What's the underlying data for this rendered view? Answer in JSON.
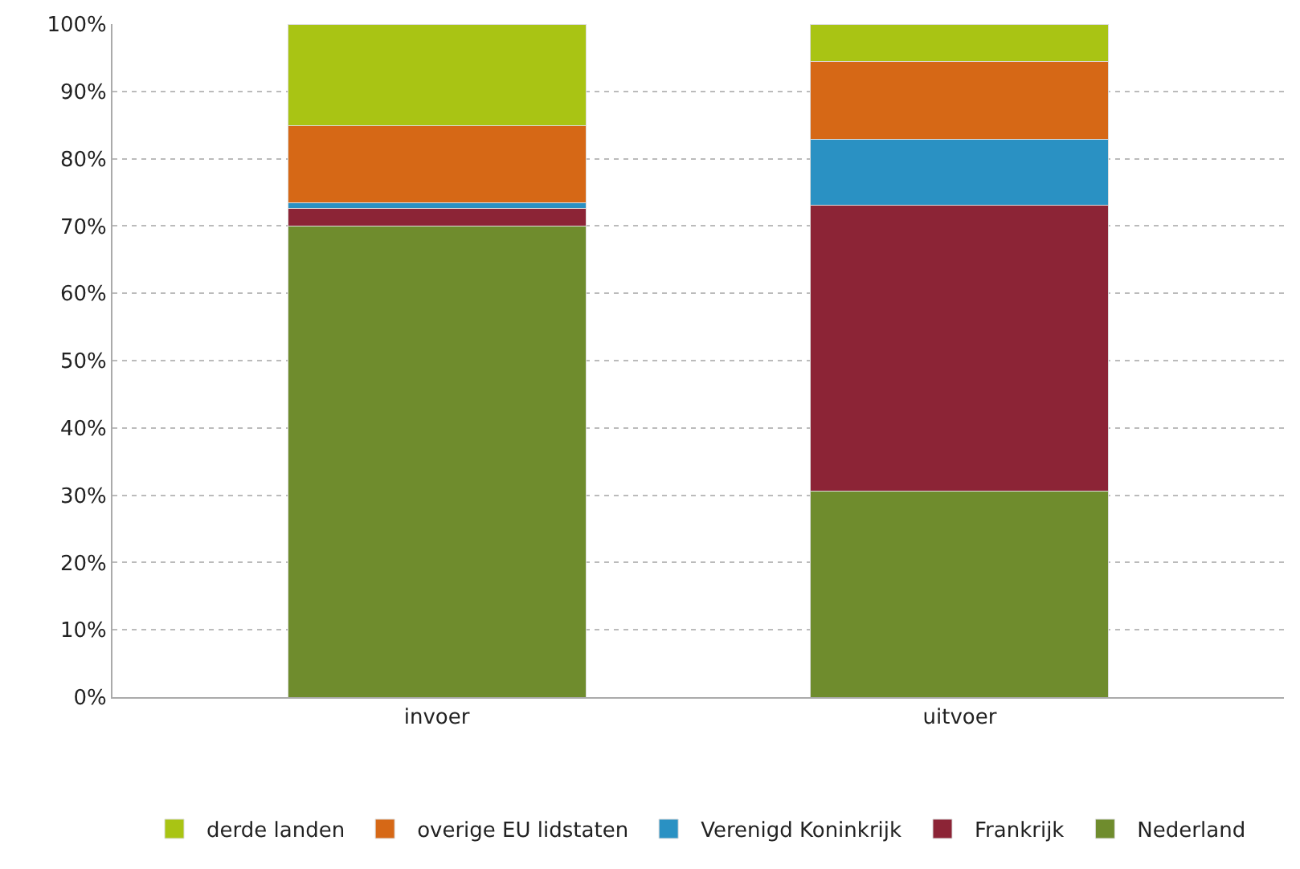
{
  "chart_data": {
    "type": "bar",
    "stacked": true,
    "categories": [
      "invoer",
      "uitvoer"
    ],
    "series": [
      {
        "name": "Nederland",
        "color": "#6f8c2d",
        "values": [
          70.0,
          30.6
        ]
      },
      {
        "name": "Frankrijk",
        "color": "#8c2436",
        "values": [
          2.6,
          42.5
        ]
      },
      {
        "name": "Verenigd Koninkrijk",
        "color": "#2a91c3",
        "values": [
          0.9,
          9.8
        ]
      },
      {
        "name": "overige EU lidstaten",
        "color": "#d66816",
        "values": [
          11.4,
          11.6
        ]
      },
      {
        "name": "derde landen",
        "color": "#a9c414",
        "values": [
          15.1,
          5.5
        ]
      }
    ],
    "ylim": [
      0,
      100
    ],
    "yticks": [
      {
        "value": 0,
        "label": "0%"
      },
      {
        "value": 10,
        "label": "10%"
      },
      {
        "value": 20,
        "label": "20%"
      },
      {
        "value": 30,
        "label": "30%"
      },
      {
        "value": 40,
        "label": "40%"
      },
      {
        "value": 50,
        "label": "50%"
      },
      {
        "value": 60,
        "label": "60%"
      },
      {
        "value": 70,
        "label": "70%"
      },
      {
        "value": 80,
        "label": "80%"
      },
      {
        "value": 90,
        "label": "90%"
      },
      {
        "value": 100,
        "label": "100%"
      }
    ],
    "grid": "y",
    "legend": "bottom"
  }
}
